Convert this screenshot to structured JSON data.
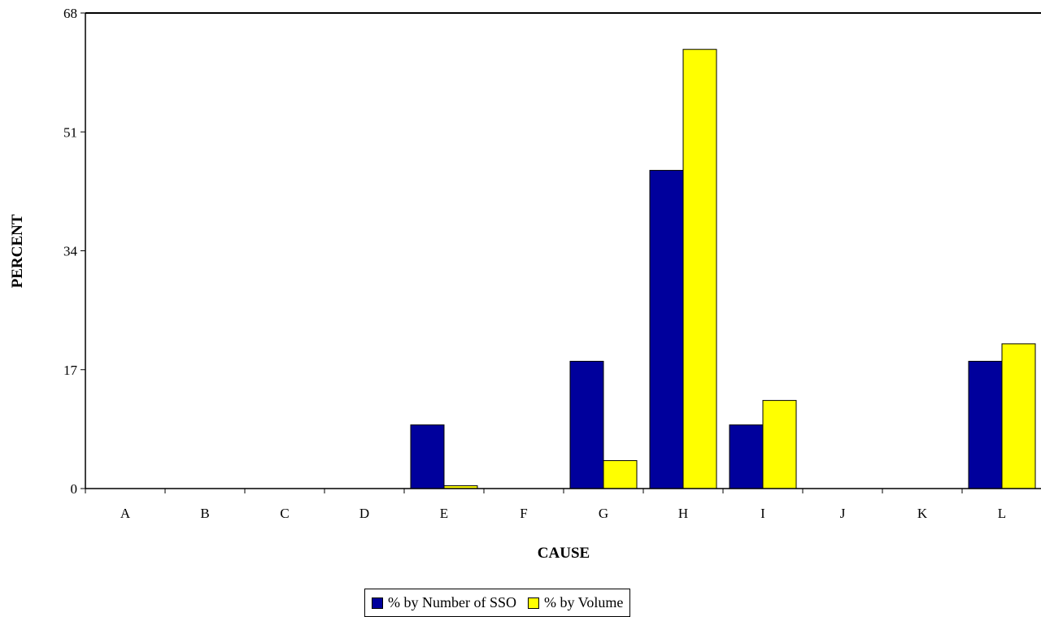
{
  "chart_data": {
    "type": "bar",
    "title": "",
    "xlabel": "CAUSE",
    "ylabel": "PERCENT",
    "ylim": [
      0,
      68
    ],
    "yticks": [
      0,
      17,
      34,
      51,
      68
    ],
    "categories": [
      "A",
      "B",
      "C",
      "D",
      "E",
      "F",
      "G",
      "H",
      "I",
      "J",
      "K",
      "L"
    ],
    "series": [
      {
        "name": "% by Number of SSO",
        "color": "#00009C",
        "values": [
          0,
          0,
          0,
          0,
          9.1,
          0,
          18.2,
          45.5,
          9.1,
          0,
          0,
          18.2
        ]
      },
      {
        "name": "% by Volume",
        "color": "#FFFF00",
        "values": [
          0,
          0,
          0,
          0,
          0.4,
          0,
          4.0,
          62.8,
          12.6,
          0,
          0,
          20.7
        ]
      }
    ],
    "grid": false,
    "legend_position": "bottom"
  }
}
